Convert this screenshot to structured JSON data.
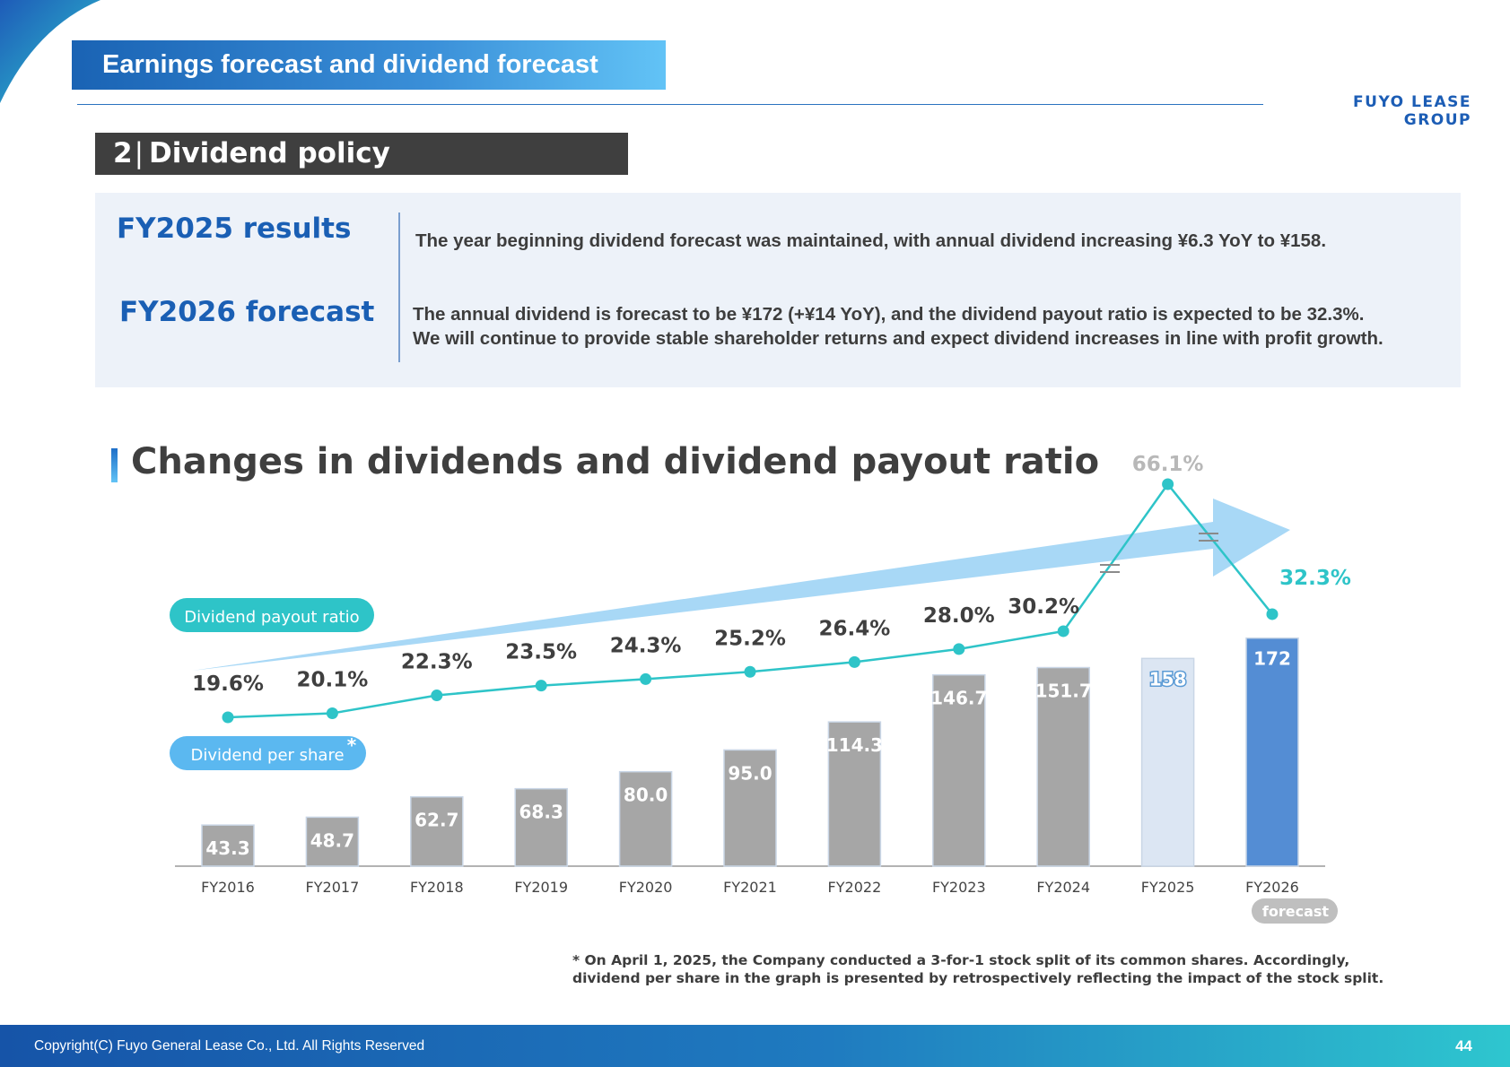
{
  "header": {
    "title": "Earnings forecast and dividend forecast",
    "brand": "FUYO LEASE GROUP"
  },
  "section": {
    "number": "2",
    "separator": "|",
    "title": "Dividend policy"
  },
  "summary": {
    "results_label": "FY2025 results",
    "results_text": "The year beginning dividend forecast was maintained, with annual dividend increasing ¥6.3 YoY to ¥158.",
    "forecast_label": "FY2026 forecast",
    "forecast_line1": "The annual dividend is forecast to be ¥172 (+¥14 YoY), and the dividend payout ratio is expected to be 32.3%.",
    "forecast_line2": "We will continue to provide stable shareholder returns and expect dividend increases in line with profit growth."
  },
  "chart_title": "Changes in dividends and dividend payout ratio",
  "chart_data": {
    "type": "bar",
    "categories": [
      "FY2016",
      "FY2017",
      "FY2018",
      "FY2019",
      "FY2020",
      "FY2021",
      "FY2022",
      "FY2023",
      "FY2024",
      "FY2025",
      "FY2026"
    ],
    "category_note": "forecast",
    "series": [
      {
        "name": "Dividend per share",
        "marker": "*",
        "type": "bar",
        "values": [
          43.3,
          48.7,
          62.7,
          68.3,
          80.0,
          95.0,
          114.3,
          146.7,
          151.7,
          158,
          172
        ],
        "labels": [
          "43.3",
          "48.7",
          "62.7",
          "68.3",
          "80.0",
          "95.0",
          "114.3",
          "146.7",
          "151.7",
          "158",
          "172"
        ]
      },
      {
        "name": "Dividend payout ratio",
        "type": "line",
        "values": [
          19.6,
          20.1,
          22.3,
          23.5,
          24.3,
          25.2,
          26.4,
          28.0,
          30.2,
          66.1,
          32.3
        ],
        "labels": [
          "19.6%",
          "20.1%",
          "22.3%",
          "23.5%",
          "24.3%",
          "25.2%",
          "26.4%",
          "28.0%",
          "30.2%",
          "66.1%",
          "32.3%"
        ]
      }
    ],
    "axis_break": "between 30.2% and 66.1%",
    "colors": {
      "bar": "#a6a6a6",
      "bar_results": "#dce6f3",
      "bar_forecast": "#548dd4",
      "line": "#2ec4c8",
      "payout_badge": "#2ec4c8",
      "dps_badge": "#5bb8f0",
      "arrow": "#a8d8f6",
      "forecast_tag": "#bfbfbf"
    }
  },
  "footnote": {
    "line1": "* On April 1, 2025, the Company conducted a 3-for-1 stock split of its common shares. Accordingly,",
    "line2": "dividend per share in the graph is presented by retrospectively reflecting the impact of the stock split."
  },
  "footer": {
    "copyright": "Copyright(C) Fuyo General Lease Co., Ltd. All Rights Reserved",
    "page": "44"
  }
}
